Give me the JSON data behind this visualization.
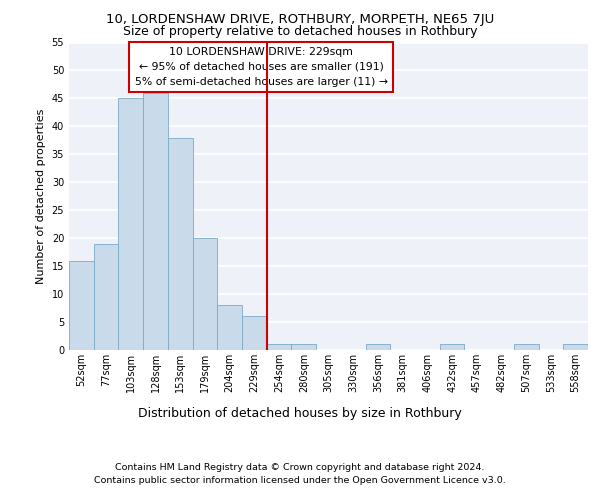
{
  "title1": "10, LORDENSHAW DRIVE, ROTHBURY, MORPETH, NE65 7JU",
  "title2": "Size of property relative to detached houses in Rothbury",
  "xlabel": "Distribution of detached houses by size in Rothbury",
  "ylabel": "Number of detached properties",
  "footer1": "Contains HM Land Registry data © Crown copyright and database right 2024.",
  "footer2": "Contains public sector information licensed under the Open Government Licence v3.0.",
  "annotation_line1": "10 LORDENSHAW DRIVE: 229sqm",
  "annotation_line2": "← 95% of detached houses are smaller (191)",
  "annotation_line3": "5% of semi-detached houses are larger (11) →",
  "bar_labels": [
    "52sqm",
    "77sqm",
    "103sqm",
    "128sqm",
    "153sqm",
    "179sqm",
    "204sqm",
    "229sqm",
    "254sqm",
    "280sqm",
    "305sqm",
    "330sqm",
    "356sqm",
    "381sqm",
    "406sqm",
    "432sqm",
    "457sqm",
    "482sqm",
    "507sqm",
    "533sqm",
    "558sqm"
  ],
  "bar_values": [
    16,
    19,
    45,
    46,
    38,
    20,
    8,
    6,
    1,
    1,
    0,
    0,
    1,
    0,
    0,
    1,
    0,
    0,
    1,
    0,
    1
  ],
  "bar_color": "#c9daea",
  "bar_edge_color": "#7aaac8",
  "vline_index": 7,
  "ylim": [
    0,
    55
  ],
  "yticks": [
    0,
    5,
    10,
    15,
    20,
    25,
    30,
    35,
    40,
    45,
    50,
    55
  ],
  "background_color": "#eef2f8",
  "grid_color": "#ffffff",
  "vline_color": "#cc0000",
  "annotation_box_color": "#cc0000",
  "title1_fontsize": 9.5,
  "title2_fontsize": 9,
  "xlabel_fontsize": 9,
  "ylabel_fontsize": 8,
  "tick_fontsize": 7,
  "annotation_fontsize": 7.8,
  "footer_fontsize": 6.8
}
